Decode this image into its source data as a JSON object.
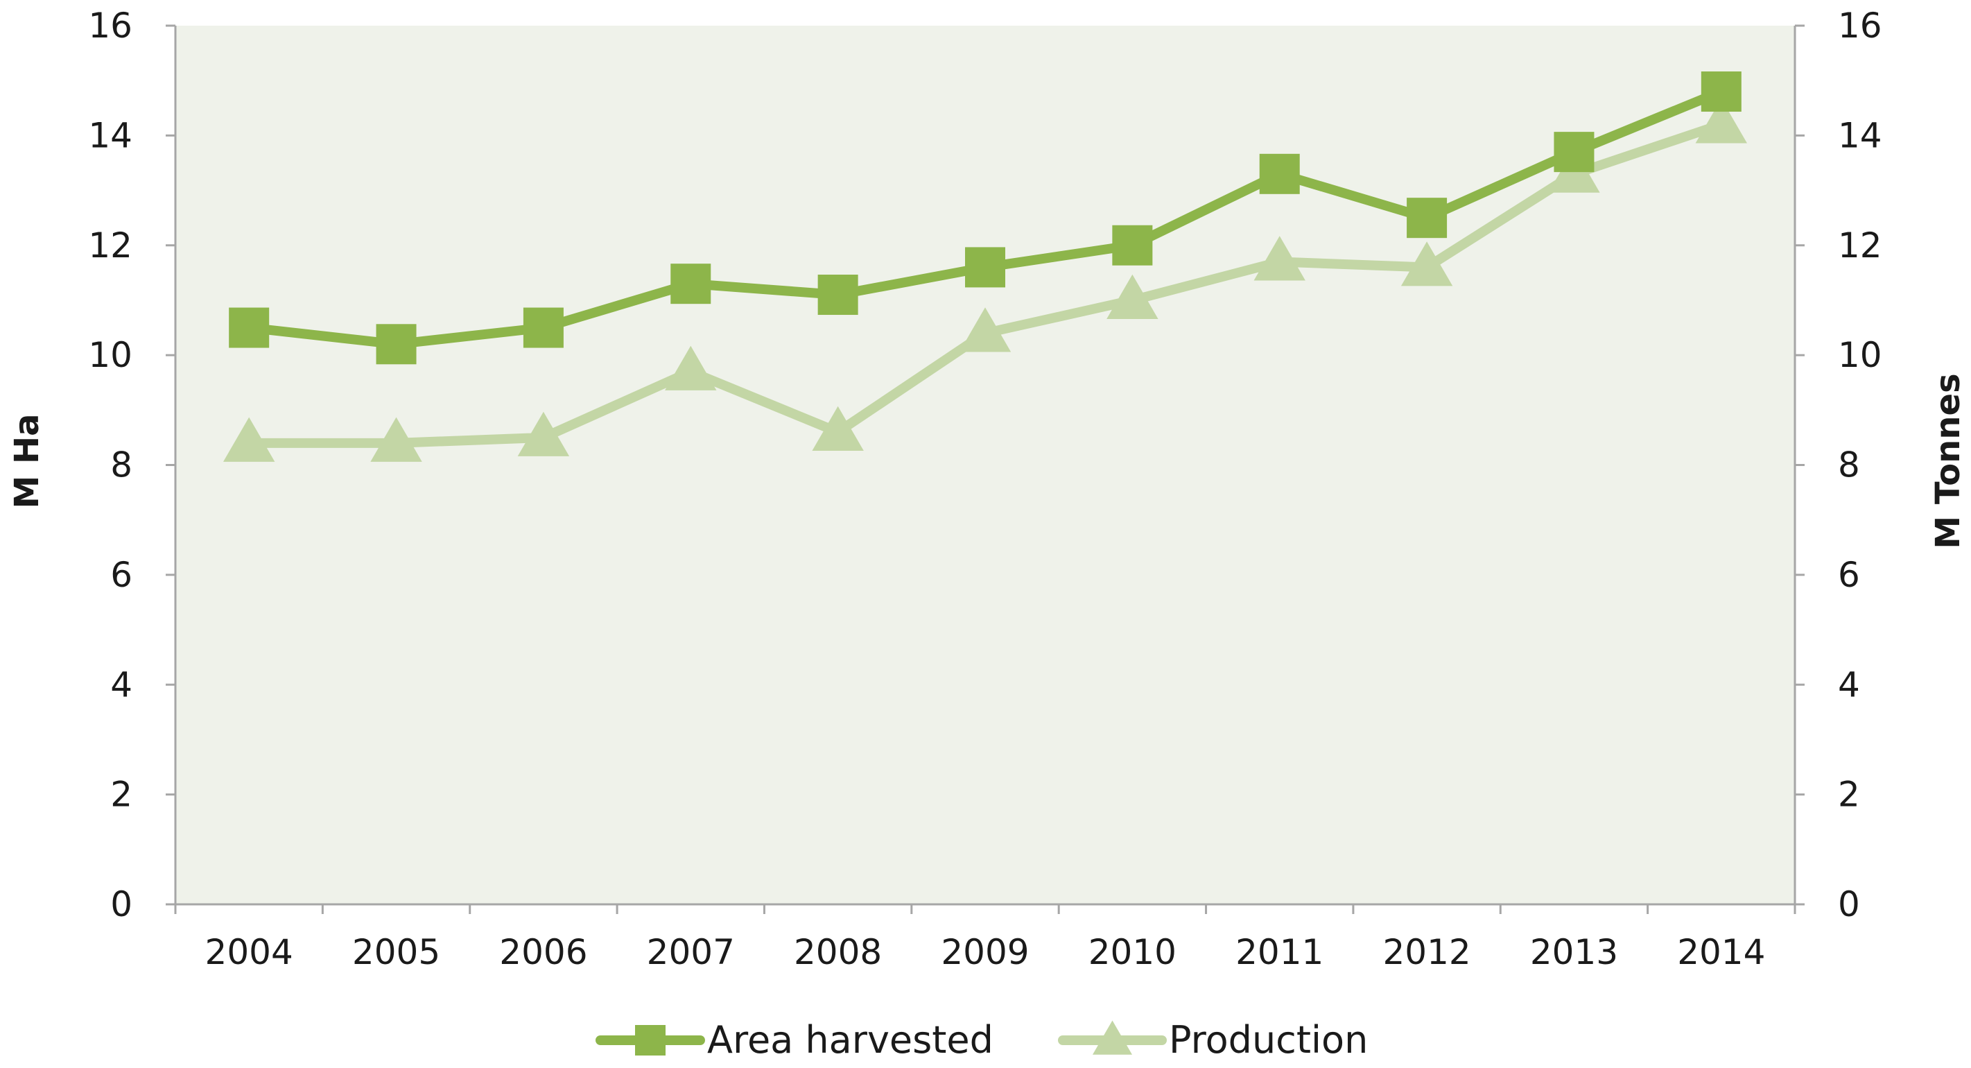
{
  "chart_data": {
    "type": "line",
    "title": "",
    "categories": [
      "2004",
      "2005",
      "2006",
      "2007",
      "2008",
      "2009",
      "2010",
      "2011",
      "2012",
      "2013",
      "2014"
    ],
    "y_axis_left": {
      "label": "M Ha",
      "ylim": [
        0,
        16
      ],
      "ticks": [
        "0",
        "2",
        "4",
        "6",
        "8",
        "10",
        "12",
        "14",
        "16"
      ]
    },
    "y_axis_right": {
      "label": "M Tonnes",
      "ylim": [
        0,
        16
      ],
      "ticks": [
        "0",
        "2",
        "4",
        "6",
        "8",
        "10",
        "12",
        "14",
        "16"
      ]
    },
    "series": [
      {
        "name": "Area harvested",
        "axis": "left",
        "marker": "square",
        "color": "#8db54a",
        "values": [
          10.5,
          10.2,
          10.5,
          11.3,
          11.1,
          11.6,
          12.0,
          13.3,
          12.5,
          13.7,
          14.8
        ]
      },
      {
        "name": "Production",
        "axis": "right",
        "marker": "triangle",
        "color": "#c3d6a5",
        "values": [
          8.4,
          8.4,
          8.5,
          9.7,
          8.6,
          10.4,
          11.0,
          11.7,
          11.6,
          13.3,
          14.2
        ]
      }
    ],
    "plot_background": "#eff2ea",
    "grid": false,
    "legend_position": "bottom"
  }
}
